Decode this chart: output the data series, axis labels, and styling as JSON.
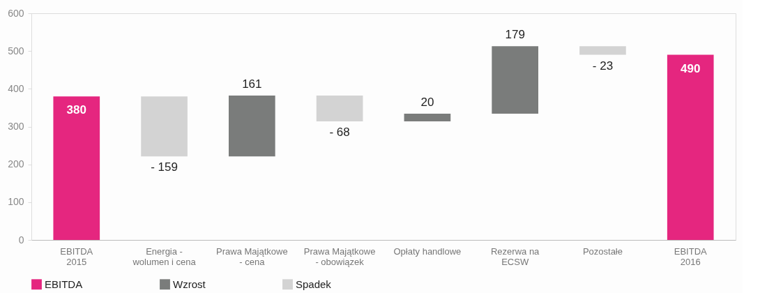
{
  "chart_data": {
    "type": "bar",
    "categories": [
      "EBITDA\n2015",
      "Energia -\nwolumen i cena",
      "Prawa Majątkowe\n- cena",
      "Prawa Majątkowe\n- obowiązek",
      "Opłaty handlowe",
      "Rezerwa na\nECSW",
      "Pozostałe",
      "EBITDA\n2016"
    ],
    "series": [
      {
        "name": "EBITDA",
        "color": "#e5267f",
        "values": [
          380,
          null,
          null,
          null,
          null,
          null,
          null,
          490
        ],
        "base": [
          0,
          null,
          null,
          null,
          null,
          null,
          null,
          0
        ]
      },
      {
        "name": "Wzrost",
        "color": "#7a7c7b",
        "values": [
          null,
          null,
          161,
          null,
          20,
          179,
          null,
          null
        ],
        "base": [
          null,
          null,
          221,
          null,
          314,
          334,
          null,
          null
        ]
      },
      {
        "name": "Spadek",
        "color": "#d3d3d3",
        "values": [
          null,
          -159,
          null,
          -68,
          null,
          null,
          -23,
          null
        ],
        "base": [
          null,
          380,
          null,
          382,
          null,
          null,
          513,
          null
        ]
      }
    ],
    "value_labels": [
      "380",
      "- 159",
      "161",
      "- 68",
      "20",
      "179",
      "- 23",
      "490"
    ],
    "ylim": [
      0,
      600
    ],
    "yticks": [
      0,
      100,
      200,
      300,
      400,
      500,
      600
    ],
    "grid": false,
    "legend": "bottom"
  }
}
